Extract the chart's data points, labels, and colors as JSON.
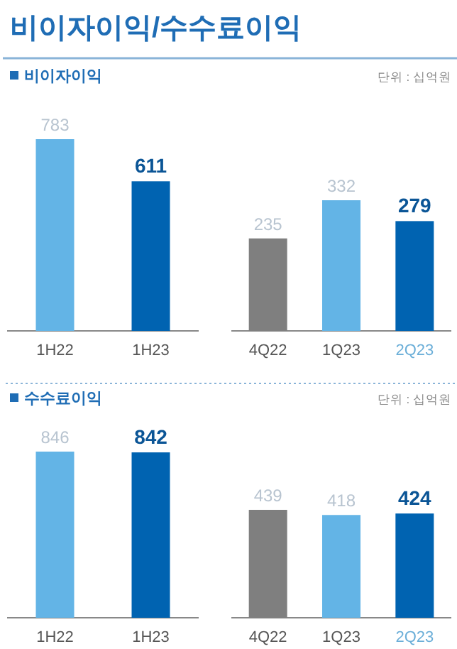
{
  "chart_data": [
    {
      "type": "bar",
      "title": "비이자이익/수수료이익",
      "subtitle": "비이자이익",
      "categories": [
        "1H22",
        "1H23"
      ],
      "values": [
        783,
        611
      ],
      "colors": [
        "#63b4e6",
        "#0063b1"
      ],
      "data_labels": true
    },
    {
      "type": "bar",
      "annotations": [
        "단위 : 십억원"
      ],
      "categories": [
        "4Q22",
        "1Q23",
        "2Q23"
      ],
      "values": [
        235,
        332,
        279
      ],
      "colors": [
        "#7f7f7f",
        "#63b4e6",
        "#0063b1"
      ],
      "data_labels": true
    },
    {
      "type": "bar",
      "title": "수수료이익",
      "categories": [
        "1H22",
        "1H23"
      ],
      "values": [
        846,
        842
      ],
      "colors": [
        "#63b4e6",
        "#0063b1"
      ],
      "data_labels": true
    },
    {
      "type": "bar",
      "annotations": [
        "단위 : 십억원"
      ],
      "categories": [
        "4Q22",
        "1Q23",
        "2Q23"
      ],
      "values": [
        439,
        418,
        424
      ],
      "colors": [
        "#7f7f7f",
        "#63b4e6",
        "#0063b1"
      ],
      "data_labels": true
    }
  ]
}
